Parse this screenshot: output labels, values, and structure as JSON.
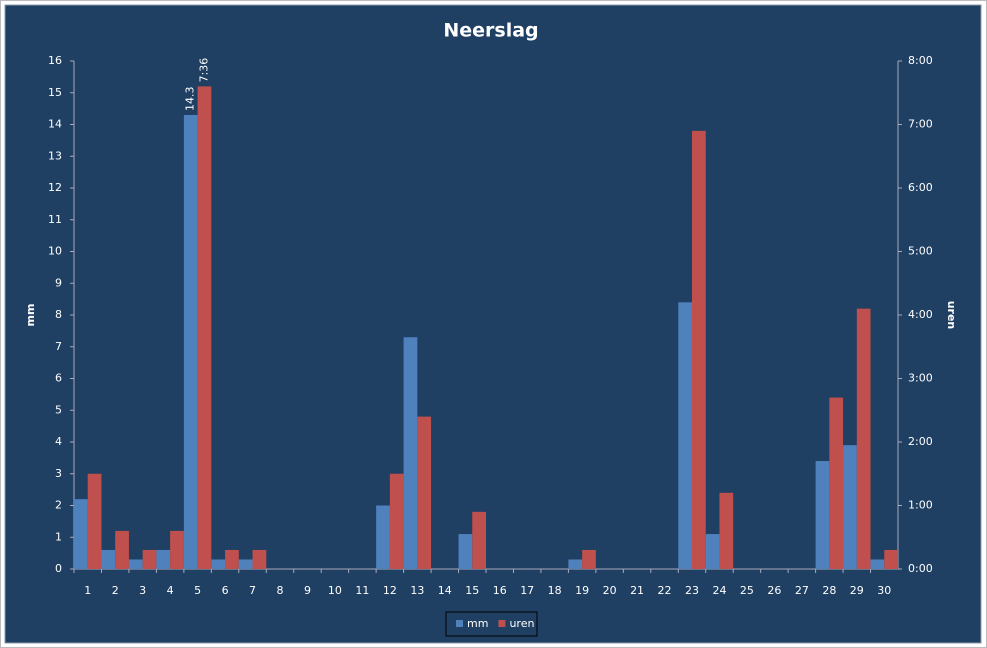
{
  "chart_data": {
    "type": "bar",
    "title": "Neerslag",
    "y_label": "mm",
    "y2_label": "uren",
    "categories": [
      "1",
      "2",
      "3",
      "4",
      "5",
      "6",
      "7",
      "8",
      "9",
      "10",
      "11",
      "12",
      "13",
      "14",
      "15",
      "16",
      "17",
      "18",
      "19",
      "20",
      "21",
      "22",
      "23",
      "24",
      "25",
      "26",
      "27",
      "28",
      "29",
      "30"
    ],
    "series": [
      {
        "name": "mm",
        "color": "#4f81bd",
        "axis": "y",
        "values": [
          2.2,
          0.6,
          0.3,
          0.6,
          14.3,
          0.3,
          0.3,
          0,
          0,
          0,
          0,
          2.0,
          7.3,
          0,
          1.1,
          0,
          0,
          0,
          0.3,
          0,
          0,
          0,
          8.4,
          1.1,
          0,
          0,
          0,
          3.4,
          3.9,
          0.3
        ],
        "value_labels": [
          null,
          null,
          null,
          null,
          "14.3",
          null,
          null,
          null,
          null,
          null,
          null,
          null,
          null,
          null,
          null,
          null,
          null,
          null,
          null,
          null,
          null,
          null,
          null,
          null,
          null,
          null,
          null,
          null,
          null,
          null
        ]
      },
      {
        "name": "uren",
        "color": "#c0504d",
        "axis": "y2",
        "values": [
          1.5,
          0.6,
          0.3,
          0.6,
          7.6,
          0.3,
          0.3,
          0,
          0,
          0,
          0,
          1.5,
          2.4,
          0,
          0.9,
          0,
          0,
          0,
          0.3,
          0,
          0,
          0,
          6.9,
          1.2,
          0,
          0,
          0,
          2.7,
          4.1,
          0.3
        ],
        "value_labels": [
          null,
          null,
          null,
          null,
          "7:36",
          null,
          null,
          null,
          null,
          null,
          null,
          null,
          null,
          null,
          null,
          null,
          null,
          null,
          null,
          null,
          null,
          null,
          null,
          null,
          null,
          null,
          null,
          null,
          null,
          null
        ]
      }
    ],
    "ylim": [
      0,
      16
    ],
    "yticks": [
      0,
      1,
      2,
      3,
      4,
      5,
      6,
      7,
      8,
      9,
      10,
      11,
      12,
      13,
      14,
      15,
      16
    ],
    "y2lim": [
      0,
      8
    ],
    "y2ticks": [
      {
        "value": 0,
        "label": "0:00"
      },
      {
        "value": 1,
        "label": "1:00"
      },
      {
        "value": 2,
        "label": "2:00"
      },
      {
        "value": 3,
        "label": "3:00"
      },
      {
        "value": 4,
        "label": "4:00"
      },
      {
        "value": 5,
        "label": "5:00"
      },
      {
        "value": 6,
        "label": "6:00"
      },
      {
        "value": 7,
        "label": "7:00"
      },
      {
        "value": 8,
        "label": "8:00"
      }
    ],
    "legend": "bottom"
  }
}
